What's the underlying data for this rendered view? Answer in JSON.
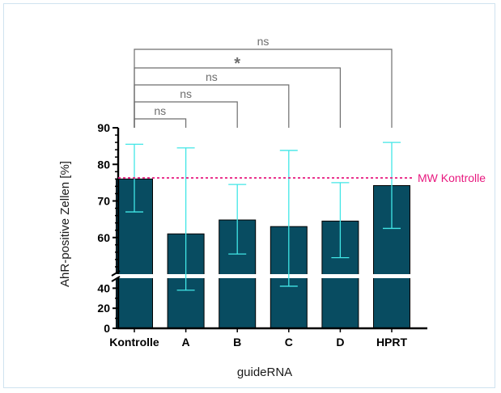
{
  "chart_data": {
    "type": "bar",
    "categories": [
      "Kontrolle",
      "A",
      "B",
      "C",
      "D",
      "HPRT"
    ],
    "values": [
      76.0,
      61.0,
      64.8,
      63.0,
      64.5,
      74.2
    ],
    "error_low": [
      67.0,
      38.0,
      55.5,
      42.0,
      54.5,
      62.5
    ],
    "error_high": [
      85.5,
      84.5,
      74.5,
      83.8,
      75.0,
      86.0
    ],
    "xlabel": "guideRNA",
    "ylabel": "AhR-positive Zellen [%]",
    "ylim": [
      0,
      90
    ],
    "axis_break": [
      50,
      50
    ],
    "yticks_major": [
      0,
      20,
      40,
      60,
      70,
      80,
      90
    ],
    "reference_line": {
      "label": "MW Kontrolle",
      "value": 76.3
    },
    "comparisons": [
      {
        "from": "Kontrolle",
        "to": "A",
        "label": "ns"
      },
      {
        "from": "Kontrolle",
        "to": "B",
        "label": "ns"
      },
      {
        "from": "Kontrolle",
        "to": "C",
        "label": "ns"
      },
      {
        "from": "Kontrolle",
        "to": "D",
        "label": "*"
      },
      {
        "from": "Kontrolle",
        "to": "HPRT",
        "label": "ns"
      }
    ],
    "colors": {
      "bar": "#084c61",
      "error": "#41e6e6",
      "reference": "#e8197f",
      "bracket": "#6e6e6e"
    }
  }
}
